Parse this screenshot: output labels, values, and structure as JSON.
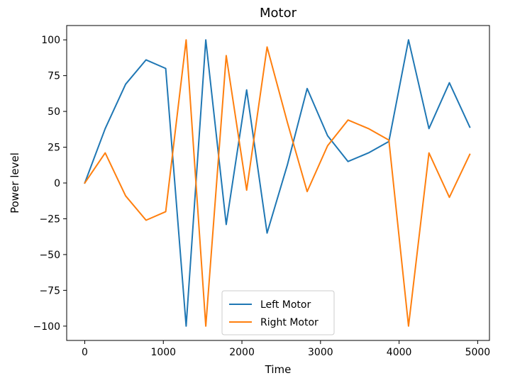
{
  "chart_data": {
    "type": "line",
    "title": "Motor",
    "xlabel": "Time",
    "ylabel": "Power level",
    "xlim": [
      -230,
      5150
    ],
    "ylim": [
      -110,
      110
    ],
    "x_ticks": [
      0,
      1000,
      2000,
      3000,
      4000,
      5000
    ],
    "y_ticks": [
      -100,
      -75,
      -50,
      -25,
      0,
      25,
      50,
      75,
      100
    ],
    "x_tick_labels": [
      "0",
      "1000",
      "2000",
      "3000",
      "4000",
      "5000"
    ],
    "y_tick_labels": [
      "−100",
      "−75",
      "−50",
      "−25",
      "0",
      "25",
      "50",
      "75",
      "100"
    ],
    "grid": false,
    "legend_position": "lower center",
    "x": [
      0,
      260,
      520,
      780,
      1030,
      1290,
      1540,
      1800,
      2060,
      2320,
      2580,
      2830,
      3090,
      3350,
      3610,
      3870,
      4120,
      4380,
      4640,
      4900
    ],
    "series": [
      {
        "name": "Left Motor",
        "color": "#1f77b4",
        "values": [
          0,
          38,
          69,
          86,
          80,
          -100,
          100,
          -29,
          65,
          -35,
          13,
          66,
          33,
          15,
          21,
          29,
          100,
          38,
          70,
          39
        ]
      },
      {
        "name": "Right Motor",
        "color": "#ff7f0e",
        "values": [
          0,
          21,
          -9,
          -26,
          -20,
          100,
          -100,
          89,
          -5,
          95,
          42,
          -6,
          26,
          44,
          38,
          30,
          -100,
          21,
          -10,
          20
        ]
      }
    ]
  }
}
